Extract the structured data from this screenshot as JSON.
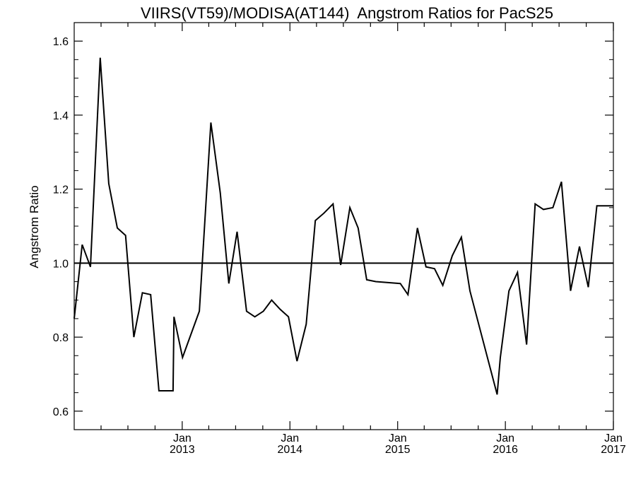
{
  "chart_data": {
    "type": "line",
    "title": "VIIRS(VT59)/MODISA(AT144)  Angstrom Ratios for PacS25",
    "xlabel": "",
    "ylabel": "Angstrom Ratio",
    "xlim": [
      "2012-01-01",
      "2017-01-01"
    ],
    "ylim": [
      0.55,
      1.65
    ],
    "yticks": [
      "0.6",
      "0.8",
      "1.0",
      "1.2",
      "1.4",
      "1.6"
    ],
    "xticks": [
      {
        "date": "2013-01-01",
        "month": "Jan",
        "year": "2013"
      },
      {
        "date": "2014-01-01",
        "month": "Jan",
        "year": "2014"
      },
      {
        "date": "2015-01-01",
        "month": "Jan",
        "year": "2015"
      },
      {
        "date": "2016-01-01",
        "month": "Jan",
        "year": "2016"
      },
      {
        "date": "2017-01-01",
        "month": "Jan",
        "year": "2017"
      }
    ],
    "reference_line": 1.0,
    "grid": false,
    "series": [
      {
        "x": [
          "2012-01-01",
          "2012-01-28",
          "2012-02-25",
          "2012-03-29",
          "2012-04-27",
          "2012-05-26",
          "2012-06-23",
          "2012-07-21",
          "2012-08-19",
          "2012-09-16",
          "2012-10-14",
          "2012-12-01",
          "2012-12-04",
          "2013-01-02",
          "2013-02-28",
          "2013-04-08",
          "2013-05-10",
          "2013-06-08",
          "2013-07-06",
          "2013-08-07",
          "2013-09-04",
          "2013-10-03",
          "2013-10-31",
          "2013-11-29",
          "2013-12-27",
          "2014-01-25",
          "2014-02-25",
          "2014-03-28",
          "2014-04-26",
          "2014-05-27",
          "2014-06-22",
          "2014-07-23",
          "2014-08-20",
          "2014-09-18",
          "2014-10-19",
          "2015-01-10",
          "2015-02-05",
          "2015-03-09",
          "2015-04-07",
          "2015-05-06",
          "2015-06-03",
          "2015-07-05",
          "2015-08-05",
          "2015-09-03",
          "2015-12-04",
          "2015-12-15",
          "2016-01-13",
          "2016-02-11",
          "2016-03-13",
          "2016-04-11",
          "2016-05-09",
          "2016-06-10",
          "2016-07-09",
          "2016-08-09",
          "2016-09-08",
          "2016-10-08",
          "2016-11-06",
          "2016-12-08",
          "2017-01-01"
        ],
        "values": [
          0.85,
          1.05,
          0.99,
          1.555,
          1.215,
          1.095,
          1.075,
          0.8,
          0.92,
          0.915,
          0.655,
          0.655,
          0.855,
          0.745,
          0.87,
          1.38,
          1.19,
          0.945,
          1.085,
          0.87,
          0.855,
          0.87,
          0.9,
          0.875,
          0.855,
          0.735,
          0.835,
          1.115,
          1.135,
          1.16,
          0.995,
          1.15,
          1.095,
          0.955,
          0.95,
          0.945,
          0.915,
          1.095,
          0.99,
          0.985,
          0.94,
          1.02,
          1.07,
          0.925,
          0.645,
          0.745,
          0.925,
          0.975,
          0.78,
          1.16,
          1.145,
          1.15,
          1.22,
          0.925,
          1.045,
          0.935,
          1.155,
          1.155,
          1.155
        ]
      }
    ]
  }
}
